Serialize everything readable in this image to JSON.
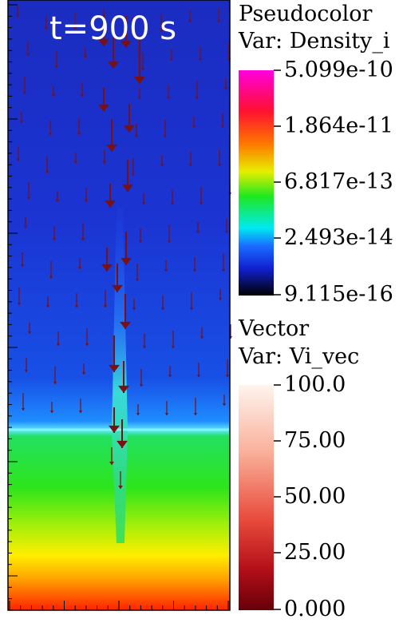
{
  "time_label": "t=900 s",
  "pseudocolor": {
    "title": "Pseudocolor",
    "var_label": "Var: Density_i",
    "ticks": [
      "5.099e-10",
      "1.864e-11",
      "6.817e-13",
      "2.493e-14",
      "9.115e-16"
    ],
    "colormap": "hot-desaturated"
  },
  "vector": {
    "title": "Vector",
    "var_label": "Var: Vi_vec",
    "ticks": [
      "100.0",
      "75.00",
      "50.00",
      "25.00",
      "0.000"
    ],
    "colormap": "reds"
  },
  "colors": {
    "background": "#ffffff",
    "text_on_plot": "#ffffff",
    "arrow": "#7a1010"
  }
}
